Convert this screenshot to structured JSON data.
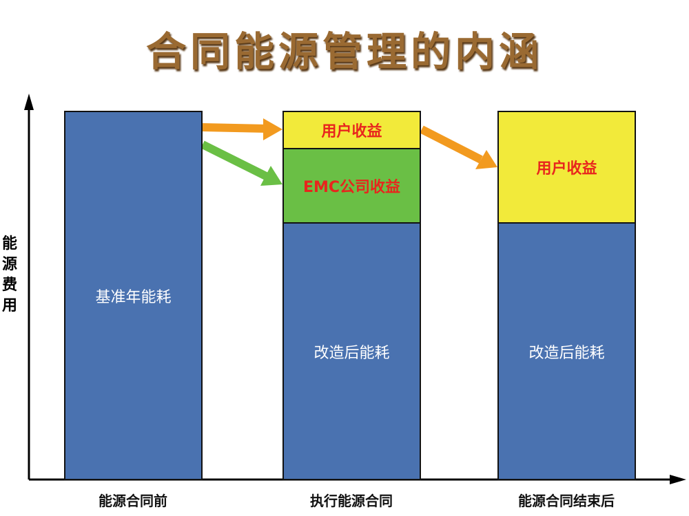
{
  "title": "合同能源管理的内涵",
  "y_axis_label": "能源费用",
  "categories": [
    "能源合同前",
    "执行能源合同",
    "能源合同结束后"
  ],
  "bars": [
    {
      "segments": [
        {
          "label": "基准年能耗",
          "color": "#4a72b0"
        }
      ]
    },
    {
      "segments": [
        {
          "label": "改造后能耗",
          "color": "#4a72b0"
        },
        {
          "label": "EMC公司收益",
          "color": "#6abf45"
        },
        {
          "label": "用户收益",
          "color": "#f2ea3a"
        }
      ]
    },
    {
      "segments": [
        {
          "label": "改造后能耗",
          "color": "#4a72b0"
        },
        {
          "label": "用户收益",
          "color": "#f2ea3a"
        }
      ]
    }
  ],
  "arrow_colors": {
    "user": "#f29a1f",
    "emc": "#6abf45"
  },
  "text_color_benefit": "#e8251d"
}
